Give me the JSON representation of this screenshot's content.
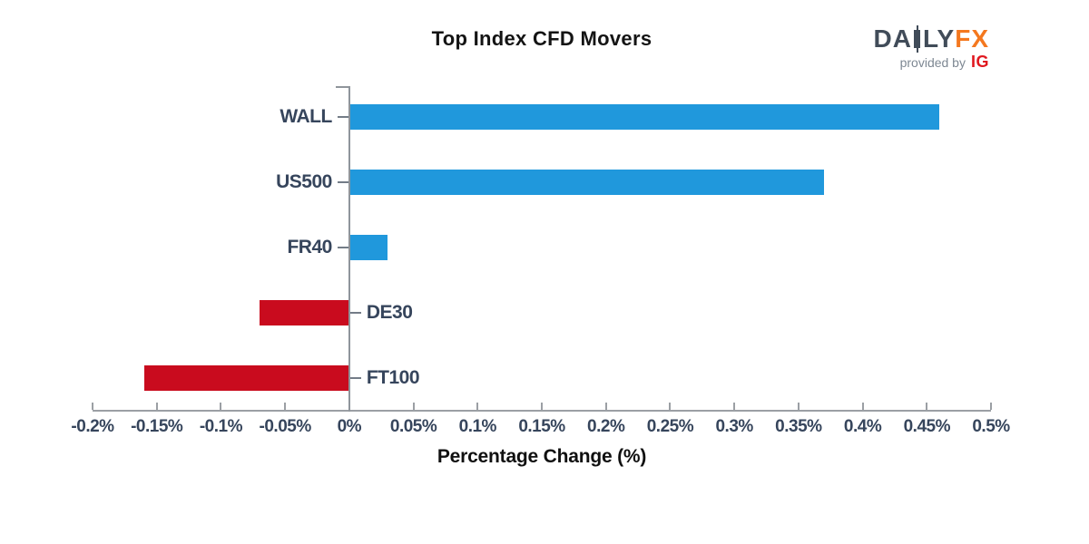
{
  "logo": {
    "brand_part1": "DA",
    "brand_part2": "LY",
    "brand_part3": "FX",
    "provided_by": "provided by",
    "ig": "IG",
    "brand_color": "#414C59",
    "fx_color": "#F4781F",
    "ig_color": "#E0181F",
    "provided_by_color": "#7E8893"
  },
  "chart_data": {
    "type": "bar",
    "orientation": "horizontal",
    "title": "Top Index CFD Movers",
    "xlabel": "Percentage Change (%)",
    "categories": [
      "WALL",
      "US500",
      "FR40",
      "DE30",
      "FT100"
    ],
    "values": [
      0.46,
      0.37,
      0.03,
      -0.07,
      -0.16
    ],
    "xlim": [
      -0.2,
      0.5
    ],
    "xticks": [
      -0.2,
      -0.15,
      -0.1,
      -0.05,
      0,
      0.05,
      0.1,
      0.15,
      0.2,
      0.25,
      0.3,
      0.35,
      0.4,
      0.45,
      0.5
    ],
    "xtick_labels": [
      "-0.2%",
      "-0.15%",
      "-0.1%",
      "-0.05%",
      "0%",
      "0.05%",
      "0.1%",
      "0.15%",
      "0.2%",
      "0.25%",
      "0.3%",
      "0.35%",
      "0.4%",
      "0.45%",
      "0.5%"
    ],
    "positive_color": "#2098DC",
    "negative_color": "#C90B1E",
    "axis_color": "#9B9FA4",
    "category_tick_color": "#737C87",
    "label_color": "#36455C",
    "grid": false,
    "legend": null
  }
}
